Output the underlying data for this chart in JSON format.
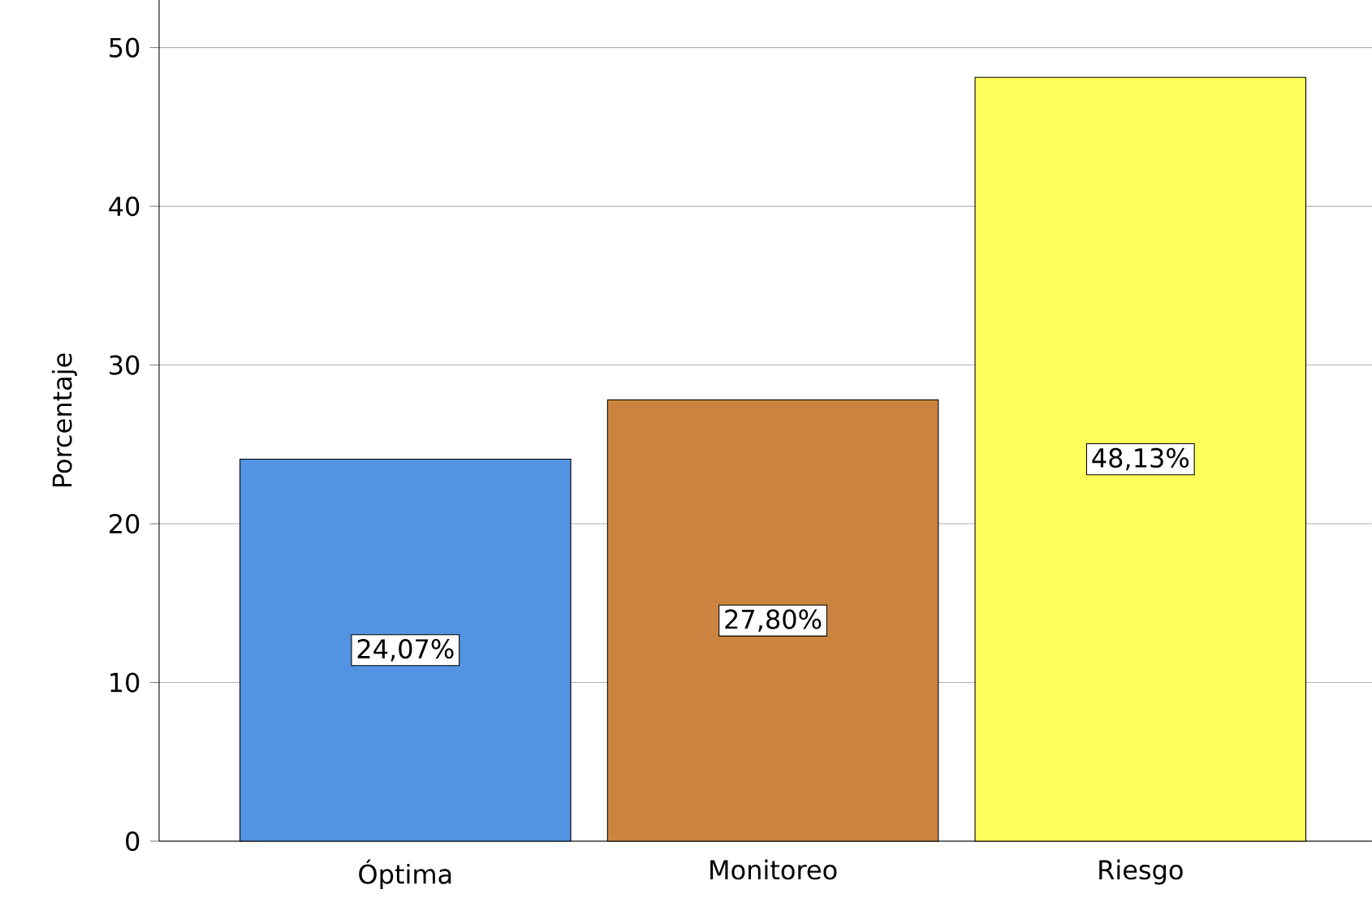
{
  "chart_data": {
    "type": "bar",
    "ylabel": "Porcentaje",
    "categories": [
      "Óptima",
      "Monitoreo",
      "Riesgo"
    ],
    "values": [
      24.07,
      27.8,
      48.13
    ],
    "value_labels": [
      "24,07%",
      "27,80%",
      "48,13%"
    ],
    "colors": [
      "#5294e2",
      "#cb843f",
      "#ffff5b"
    ],
    "ylim": [
      0,
      53
    ],
    "yticks": [
      0,
      10,
      20,
      30,
      40,
      50
    ],
    "grid": "y"
  }
}
